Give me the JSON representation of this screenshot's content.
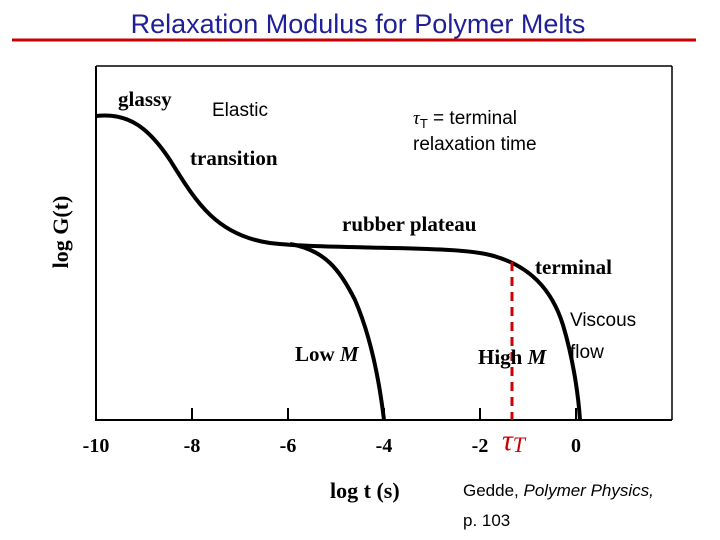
{
  "title": "Relaxation Modulus for Polymer Melts",
  "figure": {
    "y_label": "log G(t)",
    "x_label": "log t (s)",
    "xlim": [
      -10,
      2
    ],
    "xticks": [
      -10,
      -8,
      -6,
      -4,
      -2,
      0
    ],
    "annotations": {
      "glassy": "glassy",
      "elastic": "Elastic",
      "transition": "transition",
      "rubber_plateau": "rubber plateau",
      "terminal": "terminal",
      "viscous_1": "Viscous",
      "viscous_2": "flow",
      "low_m": {
        "text": "Low",
        "italic": "M"
      },
      "high_m": {
        "text": "High",
        "italic": "M"
      },
      "tau_axis": {
        "symbol": "τ",
        "subscript": "T"
      },
      "tau_def": {
        "symbol": "τ",
        "subscript": "T",
        "text": " = terminal",
        "line2": "relaxation time"
      }
    }
  },
  "citation": {
    "author": "Gedde, ",
    "work": "Polymer Physics,",
    "page": "p. 103"
  }
}
